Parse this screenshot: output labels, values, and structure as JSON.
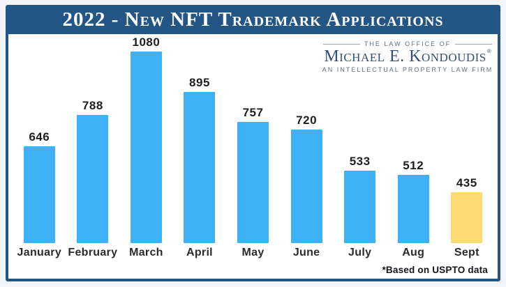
{
  "header": {
    "title": "2022 - New NFT Trademark Applications"
  },
  "logo": {
    "top_line": "THE LAW OFFICE OF",
    "name": "Michael E. Kondoudis",
    "registered_mark": "®",
    "bottom_line": "AN INTELLECTUAL PROPERTY LAW FIRM"
  },
  "footnote": "*Based on USPTO data",
  "colors": {
    "frame_navy": "#235585",
    "logo_navy": "#2F4F7A",
    "bar_blue": "#3FB1F7",
    "bar_highlight_yellow": "#FADC72",
    "page_background": "#F2F6FA",
    "label_dark": "#1F1F1F"
  },
  "chart_data": {
    "type": "bar",
    "title": "2022 - New NFT Trademark Applications",
    "categories": [
      "January",
      "February",
      "March",
      "April",
      "May",
      "June",
      "July",
      "Aug",
      "Sept"
    ],
    "values": [
      646,
      788,
      1080,
      895,
      757,
      720,
      533,
      512,
      435
    ],
    "bar_colors": [
      "#3FB1F7",
      "#3FB1F7",
      "#3FB1F7",
      "#3FB1F7",
      "#3FB1F7",
      "#3FB1F7",
      "#3FB1F7",
      "#3FB1F7",
      "#FADC72"
    ],
    "value_labels": true,
    "grid": false,
    "legend": false,
    "xlabel": "",
    "ylabel": "",
    "ylim": [
      200,
      1080
    ],
    "annotation": "*Based on USPTO data"
  }
}
